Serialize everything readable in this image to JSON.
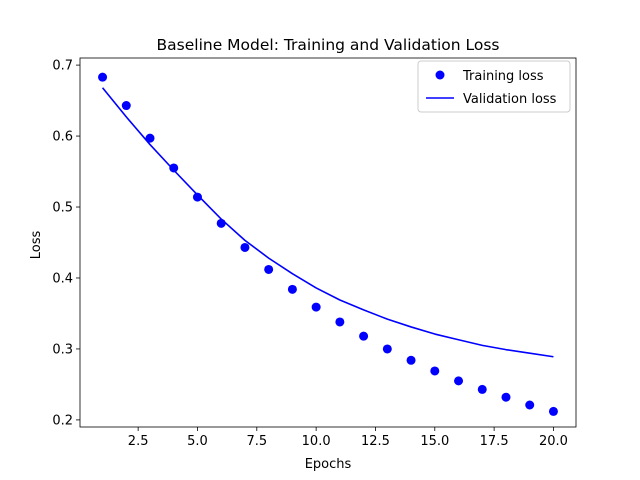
{
  "chart_data": {
    "type": "scatter+line",
    "title": "Baseline Model: Training and Validation Loss",
    "xlabel": "Epochs",
    "ylabel": "Loss",
    "xlim": [
      0.05,
      20.95
    ],
    "ylim": [
      0.19,
      0.71
    ],
    "xticks": [
      2.5,
      5.0,
      7.5,
      10.0,
      12.5,
      15.0,
      17.5,
      20.0
    ],
    "xtick_labels": [
      "2.5",
      "5.0",
      "7.5",
      "10.0",
      "12.5",
      "15.0",
      "17.5",
      "20.0"
    ],
    "yticks": [
      0.2,
      0.3,
      0.4,
      0.5,
      0.6,
      0.7
    ],
    "ytick_labels": [
      "0.2",
      "0.3",
      "0.4",
      "0.5",
      "0.6",
      "0.7"
    ],
    "legend_position": "top-right",
    "series": [
      {
        "name": "Training loss",
        "style": "markers",
        "color": "#0000ff",
        "x": [
          1,
          2,
          3,
          4,
          5,
          6,
          7,
          8,
          9,
          10,
          11,
          12,
          13,
          14,
          15,
          16,
          17,
          18,
          19,
          20
        ],
        "values": [
          0.683,
          0.643,
          0.597,
          0.555,
          0.514,
          0.477,
          0.443,
          0.412,
          0.384,
          0.359,
          0.338,
          0.318,
          0.3,
          0.284,
          0.269,
          0.255,
          0.243,
          0.232,
          0.221,
          0.212
        ]
      },
      {
        "name": "Validation loss",
        "style": "line",
        "color": "#0000ff",
        "x": [
          1,
          2,
          3,
          4,
          5,
          6,
          7,
          8,
          9,
          10,
          11,
          12,
          13,
          14,
          15,
          16,
          17,
          18,
          19,
          20
        ],
        "values": [
          0.668,
          0.627,
          0.588,
          0.552,
          0.517,
          0.483,
          0.453,
          0.428,
          0.406,
          0.386,
          0.369,
          0.355,
          0.342,
          0.331,
          0.321,
          0.313,
          0.305,
          0.299,
          0.294,
          0.289
        ]
      }
    ]
  }
}
